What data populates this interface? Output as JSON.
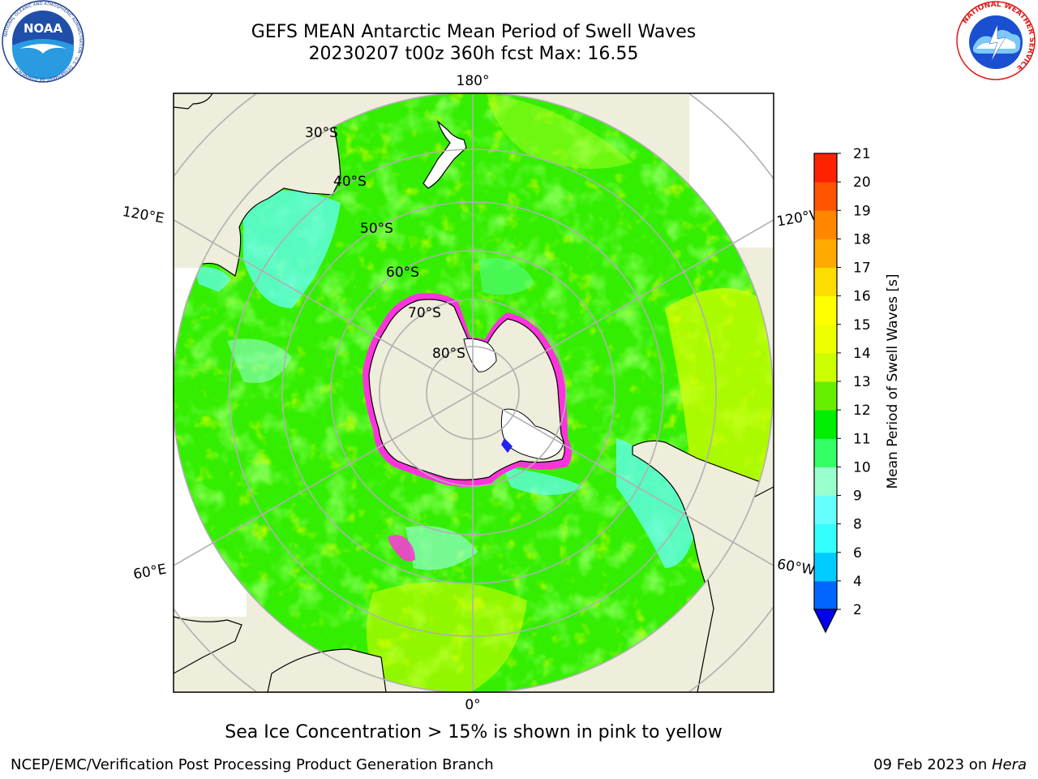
{
  "header": {
    "title_line1": "GEFS MEAN Antarctic Mean Period of Swell Waves",
    "title_line2": "20230207 t00z 360h fcst   Max: 16.55"
  },
  "logos": {
    "left": {
      "icon": "noaa-logo",
      "text": "NOAA",
      "ring_text": "NATIONAL OCEANIC AND ATMOSPHERIC ADMINISTRATION · U.S. DEPARTMENT OF COMMERCE"
    },
    "right": {
      "icon": "nws-logo",
      "ring_text": "NATIONAL WEATHER SERVICE"
    }
  },
  "map": {
    "projection": "south-polar-stereographic",
    "lon_labels": {
      "top": "180°",
      "bottom": "0°",
      "left_upper": "120°E",
      "left_lower": "60°E",
      "right_upper": "120°W",
      "right_lower": "60°W"
    },
    "lat_labels": [
      "30°S",
      "40°S",
      "50°S",
      "60°S",
      "70°S",
      "80°S"
    ]
  },
  "colorbar": {
    "label": "Mean Period of Swell Waves [s]",
    "ticks": [
      "2",
      "4",
      "6",
      "8",
      "9",
      "10",
      "11",
      "12",
      "13",
      "14",
      "15",
      "16",
      "17",
      "18",
      "19",
      "20",
      "21"
    ],
    "colors": [
      "#0066ff",
      "#00ccff",
      "#33ffff",
      "#66ffff",
      "#99ffcc",
      "#33ff66",
      "#00ee00",
      "#66ee00",
      "#ccff00",
      "#eeff00",
      "#ffff00",
      "#ffdd00",
      "#ffaa00",
      "#ff8800",
      "#ff5500",
      "#ff2200"
    ],
    "under_color": "#0000ee"
  },
  "note": "Sea Ice Concentration > 15% is shown in pink to yellow",
  "footer": {
    "left": "NCEP/EMC/Verification Post Processing Product Generation Branch",
    "date": "09 Feb 2023 on ",
    "host": "Hera"
  },
  "colors": {
    "land": "#efeddb",
    "ocean_main": "#33ee00",
    "ocean_light": "#66ff33",
    "ocean_yellow": "#ccff00",
    "ocean_cyan": "#66ffff",
    "ocean_seafoam": "#55ff88",
    "sea_ice_edge": "#ff33dd",
    "grid": "#b0b0b0"
  }
}
